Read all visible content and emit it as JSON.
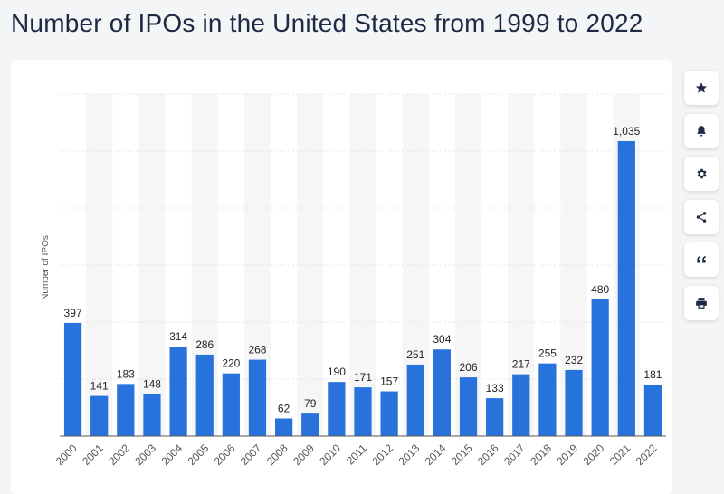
{
  "page": {
    "title": "Number of IPOs in the United States from 1999 to 2022"
  },
  "toolbar": [
    {
      "name": "star-icon",
      "action": "favorite"
    },
    {
      "name": "bell-icon",
      "action": "notify"
    },
    {
      "name": "gear-icon",
      "action": "settings"
    },
    {
      "name": "share-icon",
      "action": "share"
    },
    {
      "name": "quote-icon",
      "action": "cite"
    },
    {
      "name": "print-icon",
      "action": "print"
    }
  ],
  "chart_data": {
    "type": "bar",
    "ylabel": "Number of IPOs",
    "xlabel": "",
    "categories": [
      "2000",
      "2001",
      "2002",
      "2003",
      "2004",
      "2005",
      "2006",
      "2007",
      "2008",
      "2009",
      "2010",
      "2011",
      "2012",
      "2013",
      "2014",
      "2015",
      "2016",
      "2017",
      "2018",
      "2019",
      "2020",
      "2021",
      "2022"
    ],
    "values": [
      397,
      141,
      183,
      148,
      314,
      286,
      220,
      268,
      62,
      79,
      190,
      171,
      157,
      251,
      304,
      206,
      133,
      217,
      255,
      232,
      480,
      1035,
      181
    ],
    "value_labels": [
      "397",
      "141",
      "183",
      "148",
      "314",
      "286",
      "220",
      "268",
      "62",
      "79",
      "190",
      "171",
      "157",
      "251",
      "304",
      "206",
      "133",
      "217",
      "255",
      "232",
      "480",
      "1,035",
      "181"
    ],
    "ylim": [
      0,
      1200
    ],
    "yticks": [
      0,
      200,
      400,
      600,
      800,
      1000,
      1200
    ],
    "grid": true,
    "bar_color": "#2872dc"
  }
}
